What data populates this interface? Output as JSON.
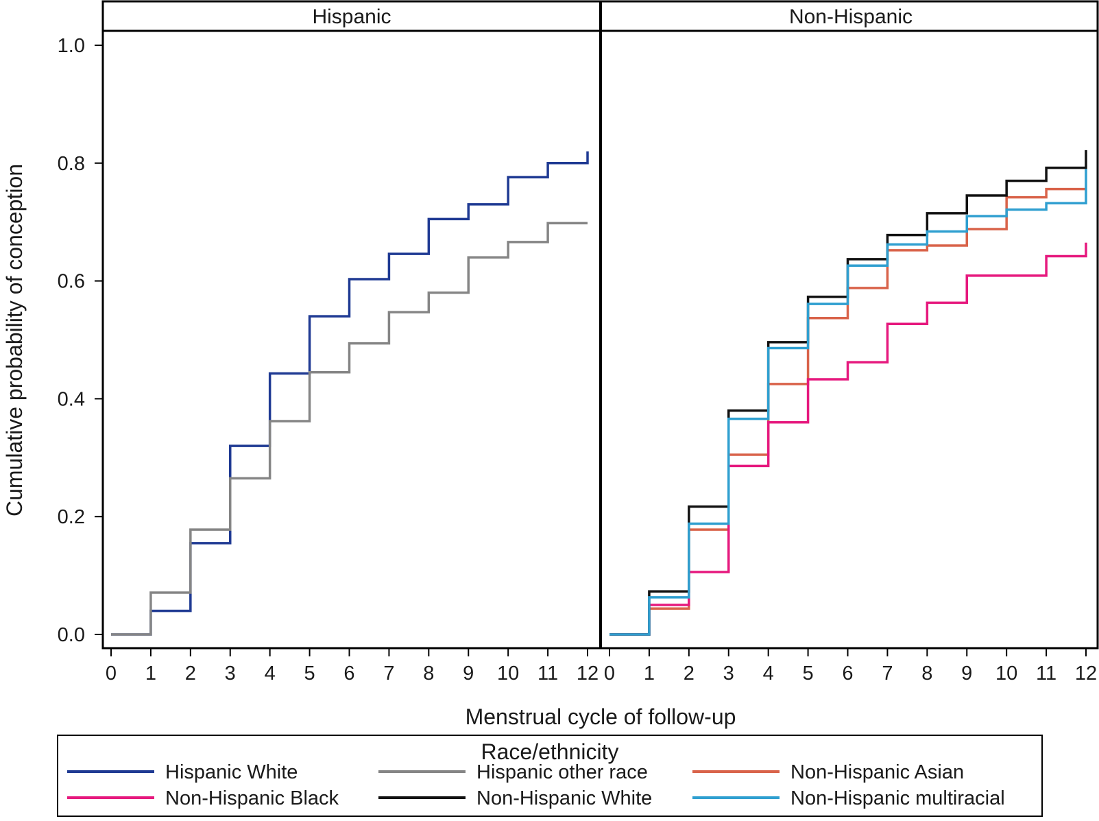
{
  "chart_data": {
    "type": "line",
    "step": true,
    "xlabel": "Menstrual cycle of follow-up",
    "ylabel": "Cumulative probability of conception",
    "xlim": [
      0,
      12
    ],
    "ylim": [
      0,
      1.0
    ],
    "x_ticks": [
      0,
      1,
      2,
      3,
      4,
      5,
      6,
      7,
      8,
      9,
      10,
      11,
      12
    ],
    "y_ticks": [
      "0.0",
      "0.2",
      "0.4",
      "0.6",
      "0.8",
      "1.0"
    ],
    "grid": false,
    "legend": {
      "title": "Race/ethnicity",
      "placement": "bottom",
      "entries": [
        {
          "label": "Hispanic White",
          "color": "#1f3a93"
        },
        {
          "label": "Hispanic other race",
          "color": "#858585"
        },
        {
          "label": "Non-Hispanic Asian",
          "color": "#d9634a"
        },
        {
          "label": "Non-Hispanic Black",
          "color": "#e6197e"
        },
        {
          "label": "Non-Hispanic White",
          "color": "#111111"
        },
        {
          "label": "Non-Hispanic multiracial",
          "color": "#2f9fd0"
        }
      ]
    },
    "panels": [
      {
        "title": "Hispanic",
        "series": [
          {
            "name": "Hispanic White",
            "color": "#1f3a93",
            "x": [
              0,
              1,
              2,
              3,
              4,
              5,
              6,
              7,
              8,
              9,
              10,
              11,
              12
            ],
            "y": [
              0.0,
              0.04,
              0.155,
              0.32,
              0.443,
              0.54,
              0.603,
              0.646,
              0.705,
              0.73,
              0.776,
              0.8,
              0.82
            ]
          },
          {
            "name": "Hispanic other race",
            "color": "#858585",
            "x": [
              0,
              1,
              2,
              3,
              4,
              5,
              6,
              7,
              8,
              9,
              10,
              11,
              12
            ],
            "y": [
              0.0,
              0.071,
              0.178,
              0.265,
              0.362,
              0.445,
              0.494,
              0.547,
              0.58,
              0.64,
              0.666,
              0.698,
              0.698
            ]
          }
        ]
      },
      {
        "title": "Non-Hispanic",
        "series": [
          {
            "name": "Non-Hispanic Asian",
            "color": "#d9634a",
            "x": [
              0,
              1,
              2,
              3,
              4,
              5,
              6,
              7,
              8,
              9,
              10,
              11,
              12
            ],
            "y": [
              0.0,
              0.044,
              0.178,
              0.305,
              0.425,
              0.537,
              0.588,
              0.652,
              0.66,
              0.688,
              0.742,
              0.756,
              0.756
            ]
          },
          {
            "name": "Non-Hispanic Black",
            "color": "#e6197e",
            "x": [
              0,
              1,
              2,
              3,
              4,
              5,
              6,
              7,
              8,
              9,
              10,
              11,
              12
            ],
            "y": [
              0.0,
              0.05,
              0.106,
              0.286,
              0.36,
              0.433,
              0.462,
              0.527,
              0.563,
              0.609,
              0.609,
              0.642,
              0.665
            ]
          },
          {
            "name": "Non-Hispanic White",
            "color": "#111111",
            "x": [
              0,
              1,
              2,
              3,
              4,
              5,
              6,
              7,
              8,
              9,
              10,
              11,
              12
            ],
            "y": [
              0.0,
              0.073,
              0.217,
              0.38,
              0.496,
              0.573,
              0.637,
              0.678,
              0.715,
              0.745,
              0.77,
              0.792,
              0.822
            ]
          },
          {
            "name": "Non-Hispanic multiracial",
            "color": "#2f9fd0",
            "x": [
              0,
              1,
              2,
              3,
              4,
              5,
              6,
              7,
              8,
              9,
              10,
              11,
              12
            ],
            "y": [
              0.0,
              0.063,
              0.188,
              0.366,
              0.486,
              0.561,
              0.626,
              0.662,
              0.684,
              0.71,
              0.721,
              0.732,
              0.79
            ]
          }
        ]
      }
    ]
  }
}
